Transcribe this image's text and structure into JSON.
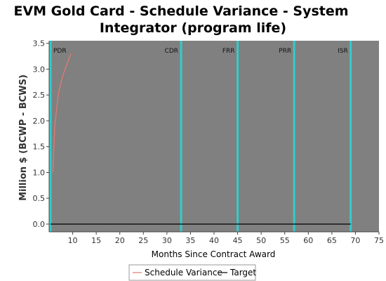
{
  "chart_data": {
    "type": "line",
    "title_line1": "EVM Gold Card - Schedule Variance - System",
    "title_line2": "Integrator (program life)",
    "xlabel": "Months Since Contract Award",
    "ylabel": "Million $ (BCWP - BCWS)",
    "xlim": [
      5,
      75
    ],
    "ylim": [
      -0.15,
      3.55
    ],
    "x_ticks": [
      "10",
      "15",
      "20",
      "25",
      "30",
      "35",
      "40",
      "45",
      "50",
      "55",
      "60",
      "65",
      "70",
      "75"
    ],
    "y_ticks": [
      "0.0",
      "0.5",
      "1.0",
      "1.5",
      "2.0",
      "2.5",
      "3.0",
      "3.5"
    ],
    "grid": false,
    "legend_position": "bottom",
    "colors": {
      "plot_bg": "#808080",
      "milestone": "#33cccc",
      "schedule_variance": "#e07a70",
      "target": "#000000"
    },
    "milestones": [
      {
        "label": "PDR",
        "x": 5.3
      },
      {
        "label": "CDR",
        "x": 33
      },
      {
        "label": "FRR",
        "x": 45
      },
      {
        "label": "PRR",
        "x": 57
      },
      {
        "label": "ISR",
        "x": 69
      }
    ],
    "series": [
      {
        "name": "Schedule Variance",
        "x": [
          5.8,
          6.2,
          7.0,
          8.0,
          9.0,
          9.6
        ],
        "y": [
          1.0,
          1.9,
          2.55,
          2.9,
          3.15,
          3.3
        ]
      },
      {
        "name": "Target",
        "x": [
          5.3,
          69
        ],
        "y": [
          0,
          0
        ]
      }
    ]
  }
}
